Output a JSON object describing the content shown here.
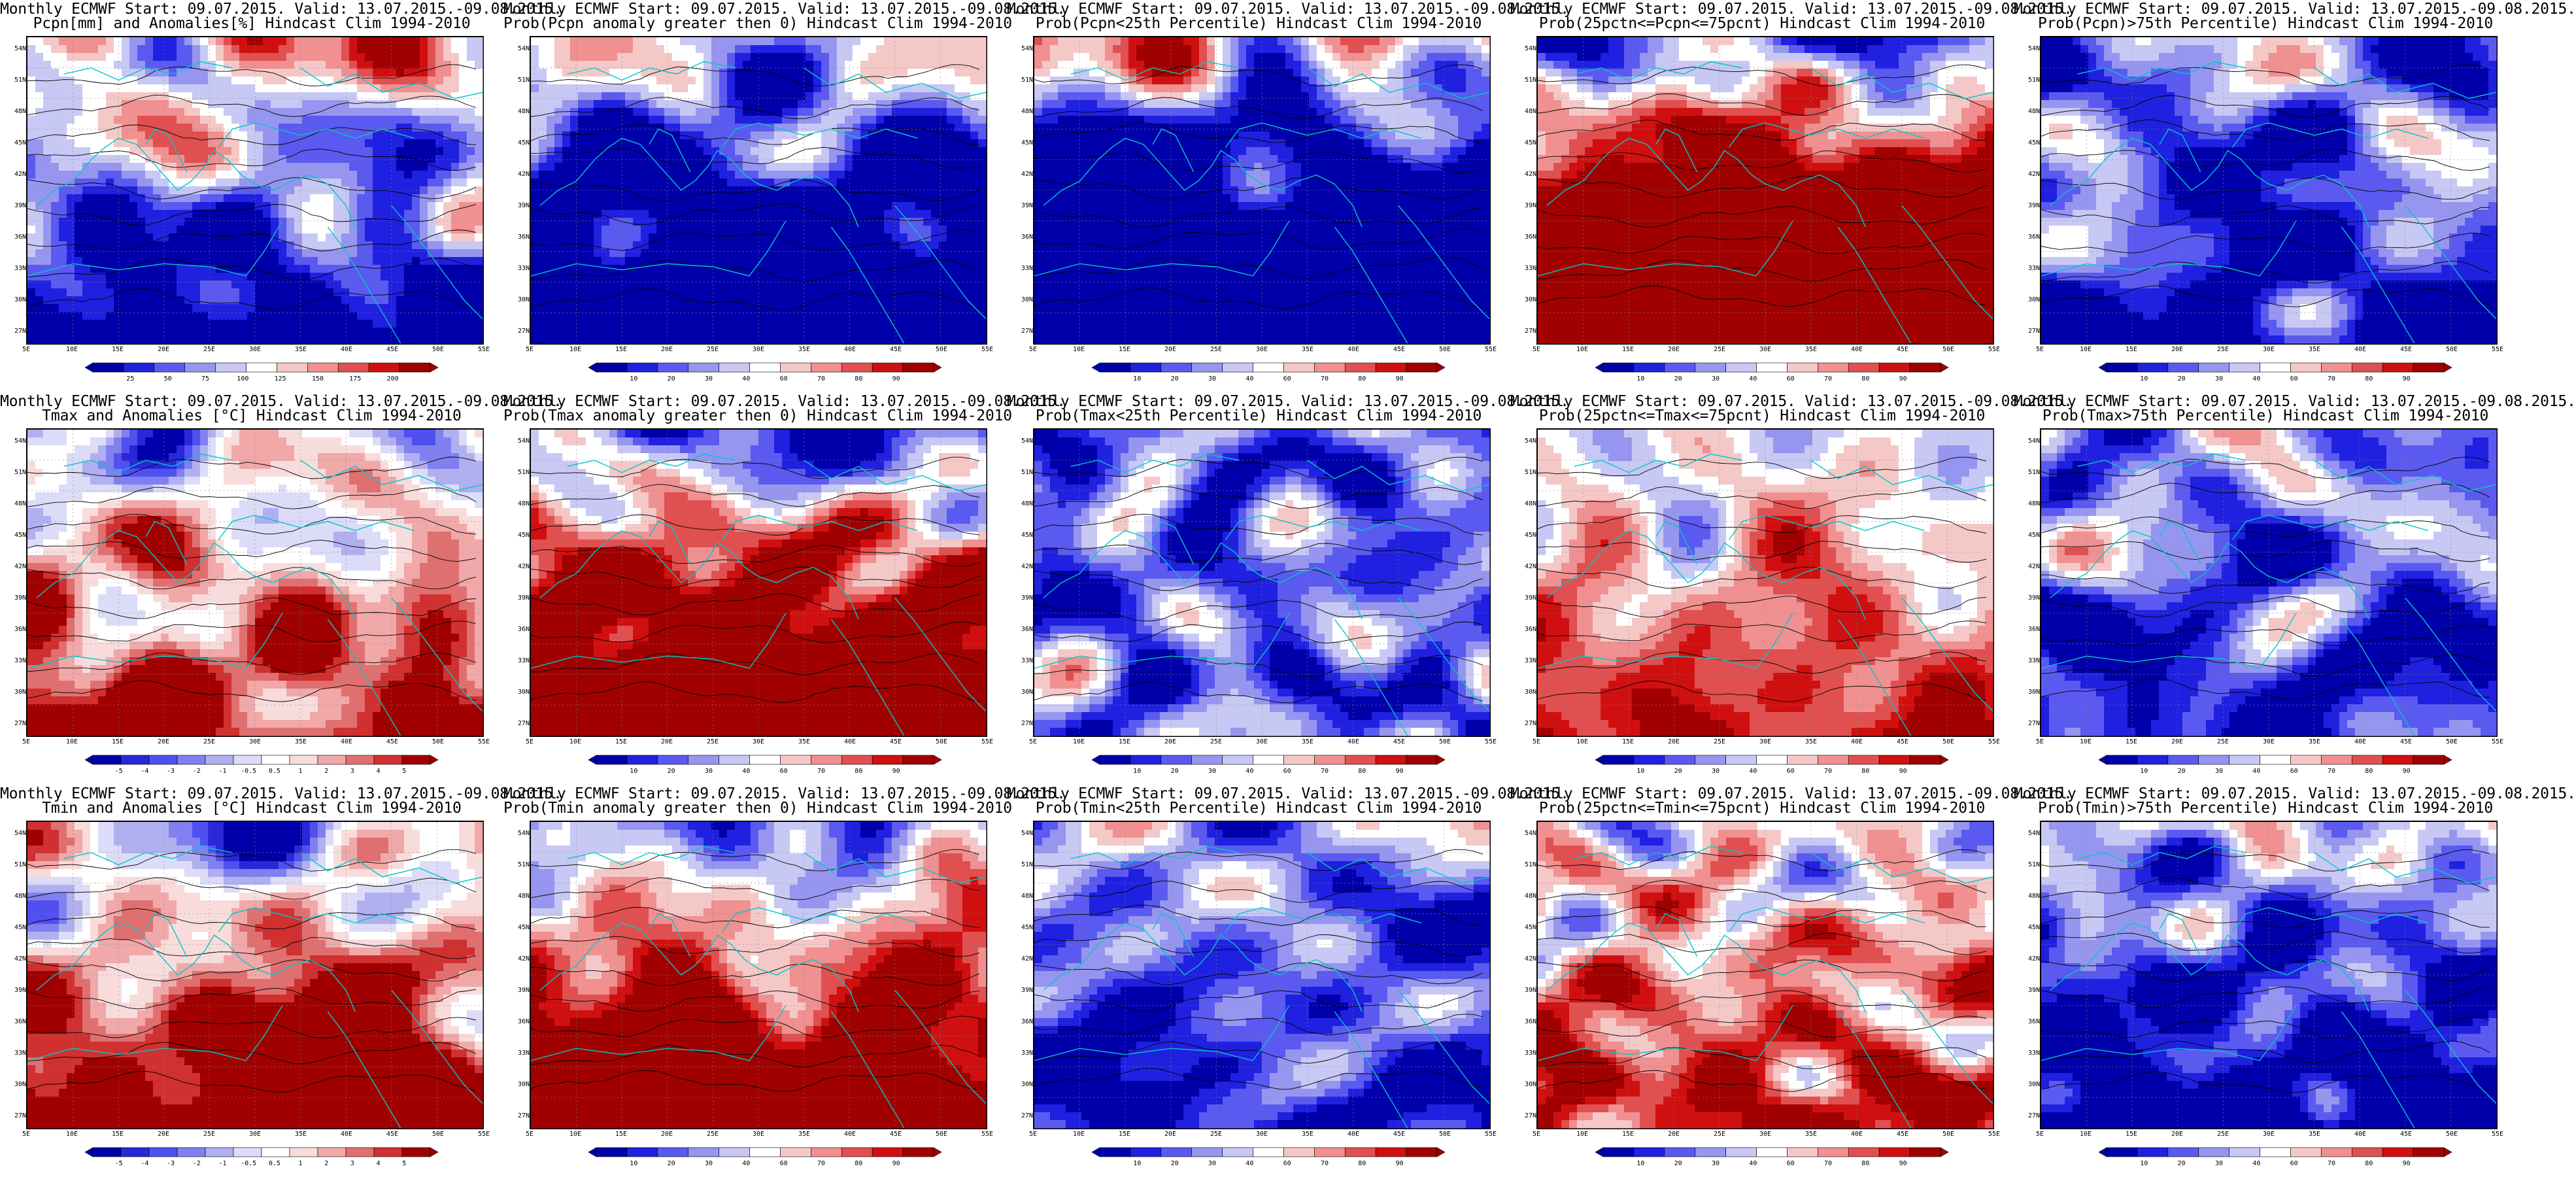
{
  "latitude_labels": [
    "54N",
    "51N",
    "48N",
    "45N",
    "42N",
    "39N",
    "36N",
    "33N",
    "30N",
    "27N"
  ],
  "longitude_labels": [
    "5E",
    "10E",
    "15E",
    "20E",
    "25E",
    "30E",
    "35E",
    "40E",
    "45E",
    "50E",
    "55E"
  ],
  "colors": {
    "prob": [
      "#0000aa",
      "#2020e0",
      "#5a5af0",
      "#9696f0",
      "#c8c8f5",
      "#ffffff",
      "#f5c8c8",
      "#f09090",
      "#e05050",
      "#d01010",
      "#a00000"
    ],
    "anom": [
      "#0000aa",
      "#2828d8",
      "#5050f0",
      "#8080f0",
      "#b0b0f0",
      "#dcdcf8",
      "#ffffff",
      "#f8dcdc",
      "#f0a8a8",
      "#e07070",
      "#d03030",
      "#a00000"
    ],
    "coast": "#00c8c8",
    "contour": "#000000"
  },
  "colorbars": {
    "pcpn": [
      "25",
      "50",
      "75",
      "100",
      "125",
      "150",
      "175",
      "200"
    ],
    "prob": [
      "10",
      "20",
      "30",
      "40",
      "60",
      "70",
      "80",
      "90"
    ],
    "anom": [
      "-5",
      "-4",
      "-3",
      "-2",
      "-1",
      "-0.5",
      "0.5",
      "1",
      "2",
      "3",
      "4",
      "5"
    ]
  },
  "panels": [
    {
      "title_line1": "Monthly ECMWF Start: 09.07.2015. Valid: 13.07.2015.-09.08.2015.",
      "title_line2": "Pcpn[mm] and Anomalies[%] Hindcast Clim 1994-2010",
      "colorbar": "pcpn",
      "field_mean": 0.05,
      "field_gradient": -0.25,
      "seed": 11
    },
    {
      "title_line1": "Monthly ECMWF Start: 09.07.2015. Valid: 13.07.2015.-09.08.2015.",
      "title_line2": "Prob(Pcpn anomaly greater then 0) Hindcast Clim 1994-2010",
      "colorbar": "prob",
      "field_mean": -0.45,
      "field_gradient": -0.35,
      "seed": 23
    },
    {
      "title_line1": "Monthly ECMWF Start: 09.07.2015. Valid: 13.07.2015.-09.08.2015.",
      "title_line2": "Prob(Pcpn<25th Percentile) Hindcast Clim 1994-2010",
      "colorbar": "prob",
      "field_mean": -0.35,
      "field_gradient": -0.55,
      "seed": 37
    },
    {
      "title_line1": "Monthly ECMWF Start: 09.07.2015. Valid: 13.07.2015.-09.08.2015.",
      "title_line2": "Prob(25pctn<=Pcpn<=75pcnt) Hindcast Clim 1994-2010",
      "colorbar": "prob",
      "field_mean": 0.1,
      "field_gradient": 0.7,
      "seed": 41
    },
    {
      "title_line1": "Monthly ECMWF Start: 09.07.2015. Valid: 13.07.2015.-09.08.2015.",
      "title_line2": "Prob(Pcpn)>75th Percentile) Hindcast Clim 1994-2010",
      "colorbar": "prob",
      "field_mean": -0.5,
      "field_gradient": -0.1,
      "seed": 53
    },
    {
      "title_line1": "Monthly ECMWF Start: 09.07.2015. Valid: 13.07.2015.-09.08.2015.",
      "title_line2": "Tmax and Anomalies [°C] Hindcast Clim 1994-2010",
      "colorbar": "anom",
      "field_mean": 0.05,
      "field_gradient": 0.2,
      "seed": 61
    },
    {
      "title_line1": "Monthly ECMWF Start: 09.07.2015. Valid: 13.07.2015.-09.08.2015.",
      "title_line2": "Prob(Tmax anomaly greater then 0) Hindcast Clim 1994-2010",
      "colorbar": "prob",
      "field_mean": -0.05,
      "field_gradient": 0.5,
      "seed": 71
    },
    {
      "title_line1": "Monthly ECMWF Start: 09.07.2015. Valid: 13.07.2015.-09.08.2015.",
      "title_line2": "Prob(Tmax<25th Percentile) Hindcast Clim 1994-2010",
      "colorbar": "prob",
      "field_mean": -0.55,
      "field_gradient": 0.0,
      "seed": 83
    },
    {
      "title_line1": "Monthly ECMWF Start: 09.07.2015. Valid: 13.07.2015.-09.08.2015.",
      "title_line2": "Prob(25pctn<=Tmax<=75pcnt) Hindcast Clim 1994-2010",
      "colorbar": "prob",
      "field_mean": 0.05,
      "field_gradient": 0.15,
      "seed": 97
    },
    {
      "title_line1": "Monthly ECMWF Start: 09.07.2015. Valid: 13.07.2015.-09.08.2015.",
      "title_line2": "Prob(Tmax>75th Percentile) Hindcast Clim 1994-2010",
      "colorbar": "prob",
      "field_mean": -0.4,
      "field_gradient": -0.1,
      "seed": 101
    },
    {
      "title_line1": "Monthly ECMWF Start: 09.07.2015. Valid: 13.07.2015.-09.08.2015.",
      "title_line2": "Tmin and Anomalies [°C] Hindcast Clim 1994-2010",
      "colorbar": "anom",
      "field_mean": 0.1,
      "field_gradient": 0.25,
      "seed": 113
    },
    {
      "title_line1": "Monthly ECMWF Start: 09.07.2015. Valid: 13.07.2015.-09.08.2015.",
      "title_line2": "Prob(Tmin anomaly greater then 0) Hindcast Clim 1994-2010",
      "colorbar": "prob",
      "field_mean": -0.1,
      "field_gradient": 0.4,
      "seed": 127
    },
    {
      "title_line1": "Monthly ECMWF Start: 09.07.2015. Valid: 13.07.2015.-09.08.2015.",
      "title_line2": "Prob(Tmin<25th Percentile) Hindcast Clim 1994-2010",
      "colorbar": "prob",
      "field_mean": -0.4,
      "field_gradient": -0.1,
      "seed": 131
    },
    {
      "title_line1": "Monthly ECMWF Start: 09.07.2015. Valid: 13.07.2015.-09.08.2015.",
      "title_line2": "Prob(25pctn<=Tmin<=75pcnt) Hindcast Clim 1994-2010",
      "colorbar": "prob",
      "field_mean": 0.1,
      "field_gradient": 0.15,
      "seed": 139
    },
    {
      "title_line1": "Monthly ECMWF Start: 09.07.2015. Valid: 13.07.2015.-09.08.2015.",
      "title_line2": "Prob(Tmin)>75th Percentile) Hindcast Clim 1994-2010",
      "colorbar": "prob",
      "field_mean": -0.35,
      "field_gradient": -0.2,
      "seed": 149
    }
  ]
}
